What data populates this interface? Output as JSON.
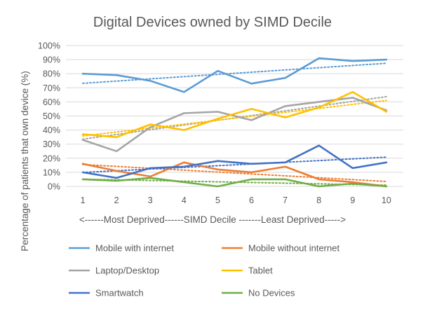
{
  "chart_data": {
    "type": "line",
    "title": "Digital Devices owned by SIMD Decile",
    "xlabel": "<------Most Deprived------SIMD Decile -------Least Deprived----->",
    "ylabel": "Percentage of patients that own device (%)",
    "categories": [
      "1",
      "2",
      "3",
      "4",
      "5",
      "6",
      "7",
      "8",
      "9",
      "10"
    ],
    "yticks": [
      "0%",
      "10%",
      "20%",
      "30%",
      "40%",
      "50%",
      "60%",
      "70%",
      "80%",
      "90%",
      "100%"
    ],
    "ylim": [
      0,
      100
    ],
    "grid": true,
    "trendlines": "linear, dotted",
    "legend_position": "bottom",
    "series": [
      {
        "name": "Mobile with internet",
        "color": "#5B9BD5",
        "values": [
          80,
          79,
          75,
          67,
          82,
          73,
          77,
          91,
          89,
          90
        ]
      },
      {
        "name": "Mobile without internet",
        "color": "#ED7D31",
        "values": [
          16,
          11,
          7,
          17,
          12,
          10,
          14,
          5,
          3,
          0
        ]
      },
      {
        "name": "Laptop/Desktop",
        "color": "#A5A5A5",
        "values": [
          33,
          25,
          42,
          52,
          53,
          47,
          57,
          60,
          63,
          54
        ]
      },
      {
        "name": "Tablet",
        "color": "#FFC000",
        "values": [
          37,
          35,
          44,
          40,
          48,
          55,
          49,
          56,
          67,
          53
        ]
      },
      {
        "name": "Smartwatch",
        "color": "#4472C4",
        "values": [
          10,
          6,
          13,
          14,
          18,
          16,
          17,
          29,
          13,
          17
        ]
      },
      {
        "name": "No Devices",
        "color": "#70AD47",
        "values": [
          5,
          4,
          6,
          3,
          0,
          5,
          5,
          0,
          2,
          0
        ]
      }
    ]
  }
}
